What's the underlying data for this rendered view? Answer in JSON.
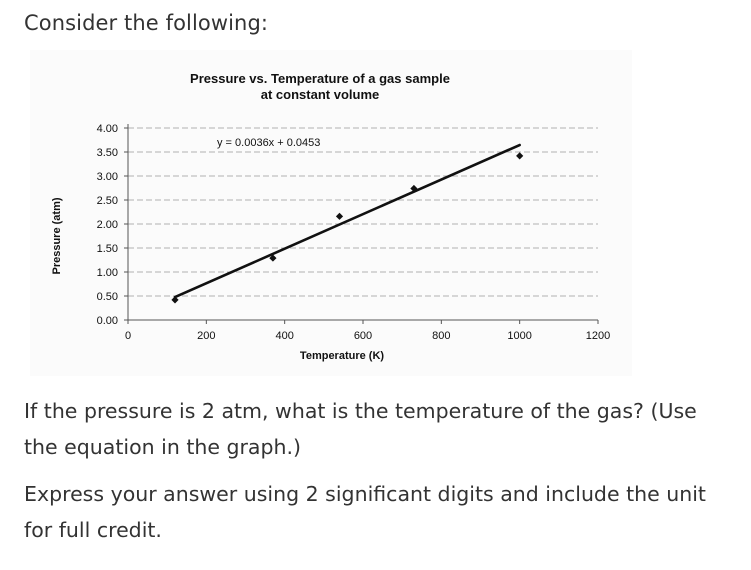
{
  "prompt": {
    "intro": "Consider the following:",
    "question": "If the pressure is 2 atm, what is the temperature of the gas? (Use the equation in the graph.)",
    "instruction": "Express your answer using 2 significant digits and include the unit for full credit."
  },
  "chart_data": {
    "type": "scatter",
    "title_line1": "Pressure vs. Temperature of a gas sample",
    "title_line2": "at constant volume",
    "xlabel": "Temperature (K)",
    "ylabel": "Pressure (atm)",
    "xlim": [
      0,
      1200
    ],
    "ylim": [
      0,
      4
    ],
    "x_ticks": [
      0,
      200,
      400,
      600,
      800,
      1000,
      1200
    ],
    "y_ticks": [
      0,
      0.5,
      1.0,
      1.5,
      2.0,
      2.5,
      3.0,
      3.5,
      4.0
    ],
    "x_tick_labels": [
      "0",
      "200",
      "400",
      "600",
      "800",
      "1000",
      "1200"
    ],
    "y_tick_labels": [
      "0.00",
      "0.50",
      "1.00",
      "1.50",
      "2.00",
      "2.50",
      "3.00",
      "3.50",
      "4.00"
    ],
    "grid": "horizontal",
    "points": [
      {
        "x": 120,
        "y": 0.42
      },
      {
        "x": 370,
        "y": 1.29
      },
      {
        "x": 540,
        "y": 2.16
      },
      {
        "x": 730,
        "y": 2.74
      },
      {
        "x": 1000,
        "y": 3.42
      }
    ],
    "trendline": {
      "equation": "y = 0.0036x + 0.0453",
      "slope": 0.0036,
      "intercept": 0.0453,
      "x_range": [
        120,
        1000
      ]
    }
  }
}
